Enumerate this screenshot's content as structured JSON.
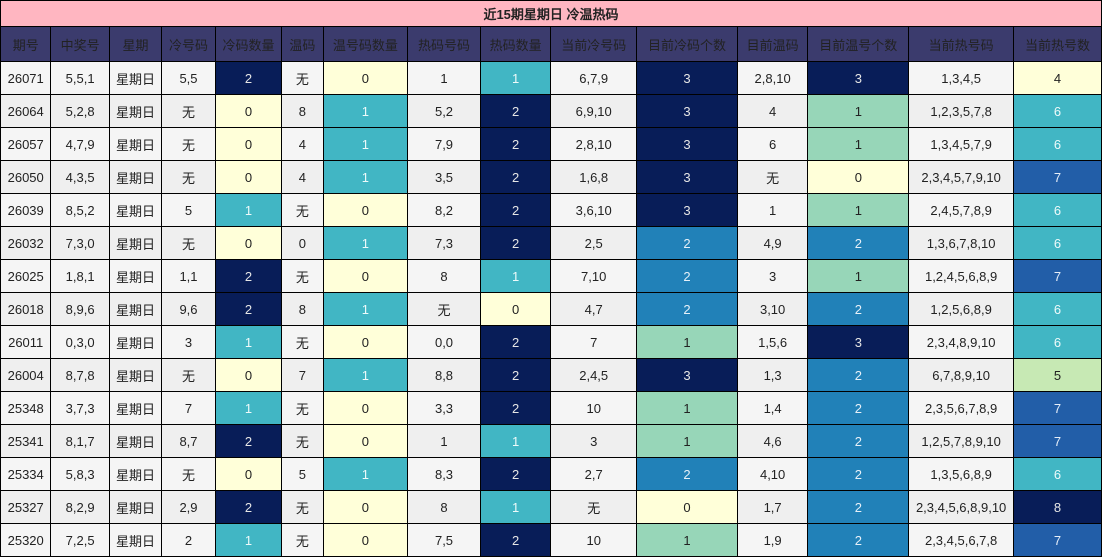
{
  "title": "近15期星期日 冷温热码",
  "columns": [
    "期号",
    "中奖号",
    "星期",
    "冷号码",
    "冷码数量",
    "温码",
    "温号码数量",
    "热码号码",
    "热码数量",
    "当前冷号码",
    "目前冷码个数",
    "目前温码",
    "目前温号个数",
    "当前热号码",
    "当前热号数"
  ],
  "color_scale": {
    "c-yellow": "#ffffd9",
    "c-lime": "#c7e9b4",
    "c-mint": "#97d6b8",
    "c-teal": "#41b6c4",
    "c-blue": "#2181b8",
    "c-royal": "#225ea8",
    "c-navy": "#081d58"
  },
  "rows": [
    {
      "period": "26071",
      "numbers": "5,5,1",
      "weekday": "星期日",
      "cold": "5,5",
      "cold_count": "2",
      "warm": "无",
      "warm_count": "0",
      "hot": "1",
      "hot_count": "1",
      "cur_cold": "6,7,9",
      "cur_cold_count": "3",
      "cur_warm": "2,8,10",
      "cur_warm_count": "3",
      "cur_hot": "1,3,4,5",
      "cur_hot_count": "4"
    },
    {
      "period": "26064",
      "numbers": "5,2,8",
      "weekday": "星期日",
      "cold": "无",
      "cold_count": "0",
      "warm": "8",
      "warm_count": "1",
      "hot": "5,2",
      "hot_count": "2",
      "cur_cold": "6,9,10",
      "cur_cold_count": "3",
      "cur_warm": "4",
      "cur_warm_count": "1",
      "cur_hot": "1,2,3,5,7,8",
      "cur_hot_count": "6"
    },
    {
      "period": "26057",
      "numbers": "4,7,9",
      "weekday": "星期日",
      "cold": "无",
      "cold_count": "0",
      "warm": "4",
      "warm_count": "1",
      "hot": "7,9",
      "hot_count": "2",
      "cur_cold": "2,8,10",
      "cur_cold_count": "3",
      "cur_warm": "6",
      "cur_warm_count": "1",
      "cur_hot": "1,3,4,5,7,9",
      "cur_hot_count": "6"
    },
    {
      "period": "26050",
      "numbers": "4,3,5",
      "weekday": "星期日",
      "cold": "无",
      "cold_count": "0",
      "warm": "4",
      "warm_count": "1",
      "hot": "3,5",
      "hot_count": "2",
      "cur_cold": "1,6,8",
      "cur_cold_count": "3",
      "cur_warm": "无",
      "cur_warm_count": "0",
      "cur_hot": "2,3,4,5,7,9,10",
      "cur_hot_count": "7"
    },
    {
      "period": "26039",
      "numbers": "8,5,2",
      "weekday": "星期日",
      "cold": "5",
      "cold_count": "1",
      "warm": "无",
      "warm_count": "0",
      "hot": "8,2",
      "hot_count": "2",
      "cur_cold": "3,6,10",
      "cur_cold_count": "3",
      "cur_warm": "1",
      "cur_warm_count": "1",
      "cur_hot": "2,4,5,7,8,9",
      "cur_hot_count": "6"
    },
    {
      "period": "26032",
      "numbers": "7,3,0",
      "weekday": "星期日",
      "cold": "无",
      "cold_count": "0",
      "warm": "0",
      "warm_count": "1",
      "hot": "7,3",
      "hot_count": "2",
      "cur_cold": "2,5",
      "cur_cold_count": "2",
      "cur_warm": "4,9",
      "cur_warm_count": "2",
      "cur_hot": "1,3,6,7,8,10",
      "cur_hot_count": "6"
    },
    {
      "period": "26025",
      "numbers": "1,8,1",
      "weekday": "星期日",
      "cold": "1,1",
      "cold_count": "2",
      "warm": "无",
      "warm_count": "0",
      "hot": "8",
      "hot_count": "1",
      "cur_cold": "7,10",
      "cur_cold_count": "2",
      "cur_warm": "3",
      "cur_warm_count": "1",
      "cur_hot": "1,2,4,5,6,8,9",
      "cur_hot_count": "7"
    },
    {
      "period": "26018",
      "numbers": "8,9,6",
      "weekday": "星期日",
      "cold": "9,6",
      "cold_count": "2",
      "warm": "8",
      "warm_count": "1",
      "hot": "无",
      "hot_count": "0",
      "cur_cold": "4,7",
      "cur_cold_count": "2",
      "cur_warm": "3,10",
      "cur_warm_count": "2",
      "cur_hot": "1,2,5,6,8,9",
      "cur_hot_count": "6"
    },
    {
      "period": "26011",
      "numbers": "0,3,0",
      "weekday": "星期日",
      "cold": "3",
      "cold_count": "1",
      "warm": "无",
      "warm_count": "0",
      "hot": "0,0",
      "hot_count": "2",
      "cur_cold": "7",
      "cur_cold_count": "1",
      "cur_warm": "1,5,6",
      "cur_warm_count": "3",
      "cur_hot": "2,3,4,8,9,10",
      "cur_hot_count": "6"
    },
    {
      "period": "26004",
      "numbers": "8,7,8",
      "weekday": "星期日",
      "cold": "无",
      "cold_count": "0",
      "warm": "7",
      "warm_count": "1",
      "hot": "8,8",
      "hot_count": "2",
      "cur_cold": "2,4,5",
      "cur_cold_count": "3",
      "cur_warm": "1,3",
      "cur_warm_count": "2",
      "cur_hot": "6,7,8,9,10",
      "cur_hot_count": "5"
    },
    {
      "period": "25348",
      "numbers": "3,7,3",
      "weekday": "星期日",
      "cold": "7",
      "cold_count": "1",
      "warm": "无",
      "warm_count": "0",
      "hot": "3,3",
      "hot_count": "2",
      "cur_cold": "10",
      "cur_cold_count": "1",
      "cur_warm": "1,4",
      "cur_warm_count": "2",
      "cur_hot": "2,3,5,6,7,8,9",
      "cur_hot_count": "7"
    },
    {
      "period": "25341",
      "numbers": "8,1,7",
      "weekday": "星期日",
      "cold": "8,7",
      "cold_count": "2",
      "warm": "无",
      "warm_count": "0",
      "hot": "1",
      "hot_count": "1",
      "cur_cold": "3",
      "cur_cold_count": "1",
      "cur_warm": "4,6",
      "cur_warm_count": "2",
      "cur_hot": "1,2,5,7,8,9,10",
      "cur_hot_count": "7"
    },
    {
      "period": "25334",
      "numbers": "5,8,3",
      "weekday": "星期日",
      "cold": "无",
      "cold_count": "0",
      "warm": "5",
      "warm_count": "1",
      "hot": "8,3",
      "hot_count": "2",
      "cur_cold": "2,7",
      "cur_cold_count": "2",
      "cur_warm": "4,10",
      "cur_warm_count": "2",
      "cur_hot": "1,3,5,6,8,9",
      "cur_hot_count": "6"
    },
    {
      "period": "25327",
      "numbers": "8,2,9",
      "weekday": "星期日",
      "cold": "2,9",
      "cold_count": "2",
      "warm": "无",
      "warm_count": "0",
      "hot": "8",
      "hot_count": "1",
      "cur_cold": "无",
      "cur_cold_count": "0",
      "cur_warm": "1,7",
      "cur_warm_count": "2",
      "cur_hot": "2,3,4,5,6,8,9,10",
      "cur_hot_count": "8"
    },
    {
      "period": "25320",
      "numbers": "7,2,5",
      "weekday": "星期日",
      "cold": "2",
      "cold_count": "1",
      "warm": "无",
      "warm_count": "0",
      "hot": "7,5",
      "hot_count": "2",
      "cur_cold": "10",
      "cur_cold_count": "1",
      "cur_warm": "1,9",
      "cur_warm_count": "2",
      "cur_hot": "2,3,4,5,6,7,8",
      "cur_hot_count": "7"
    }
  ]
}
